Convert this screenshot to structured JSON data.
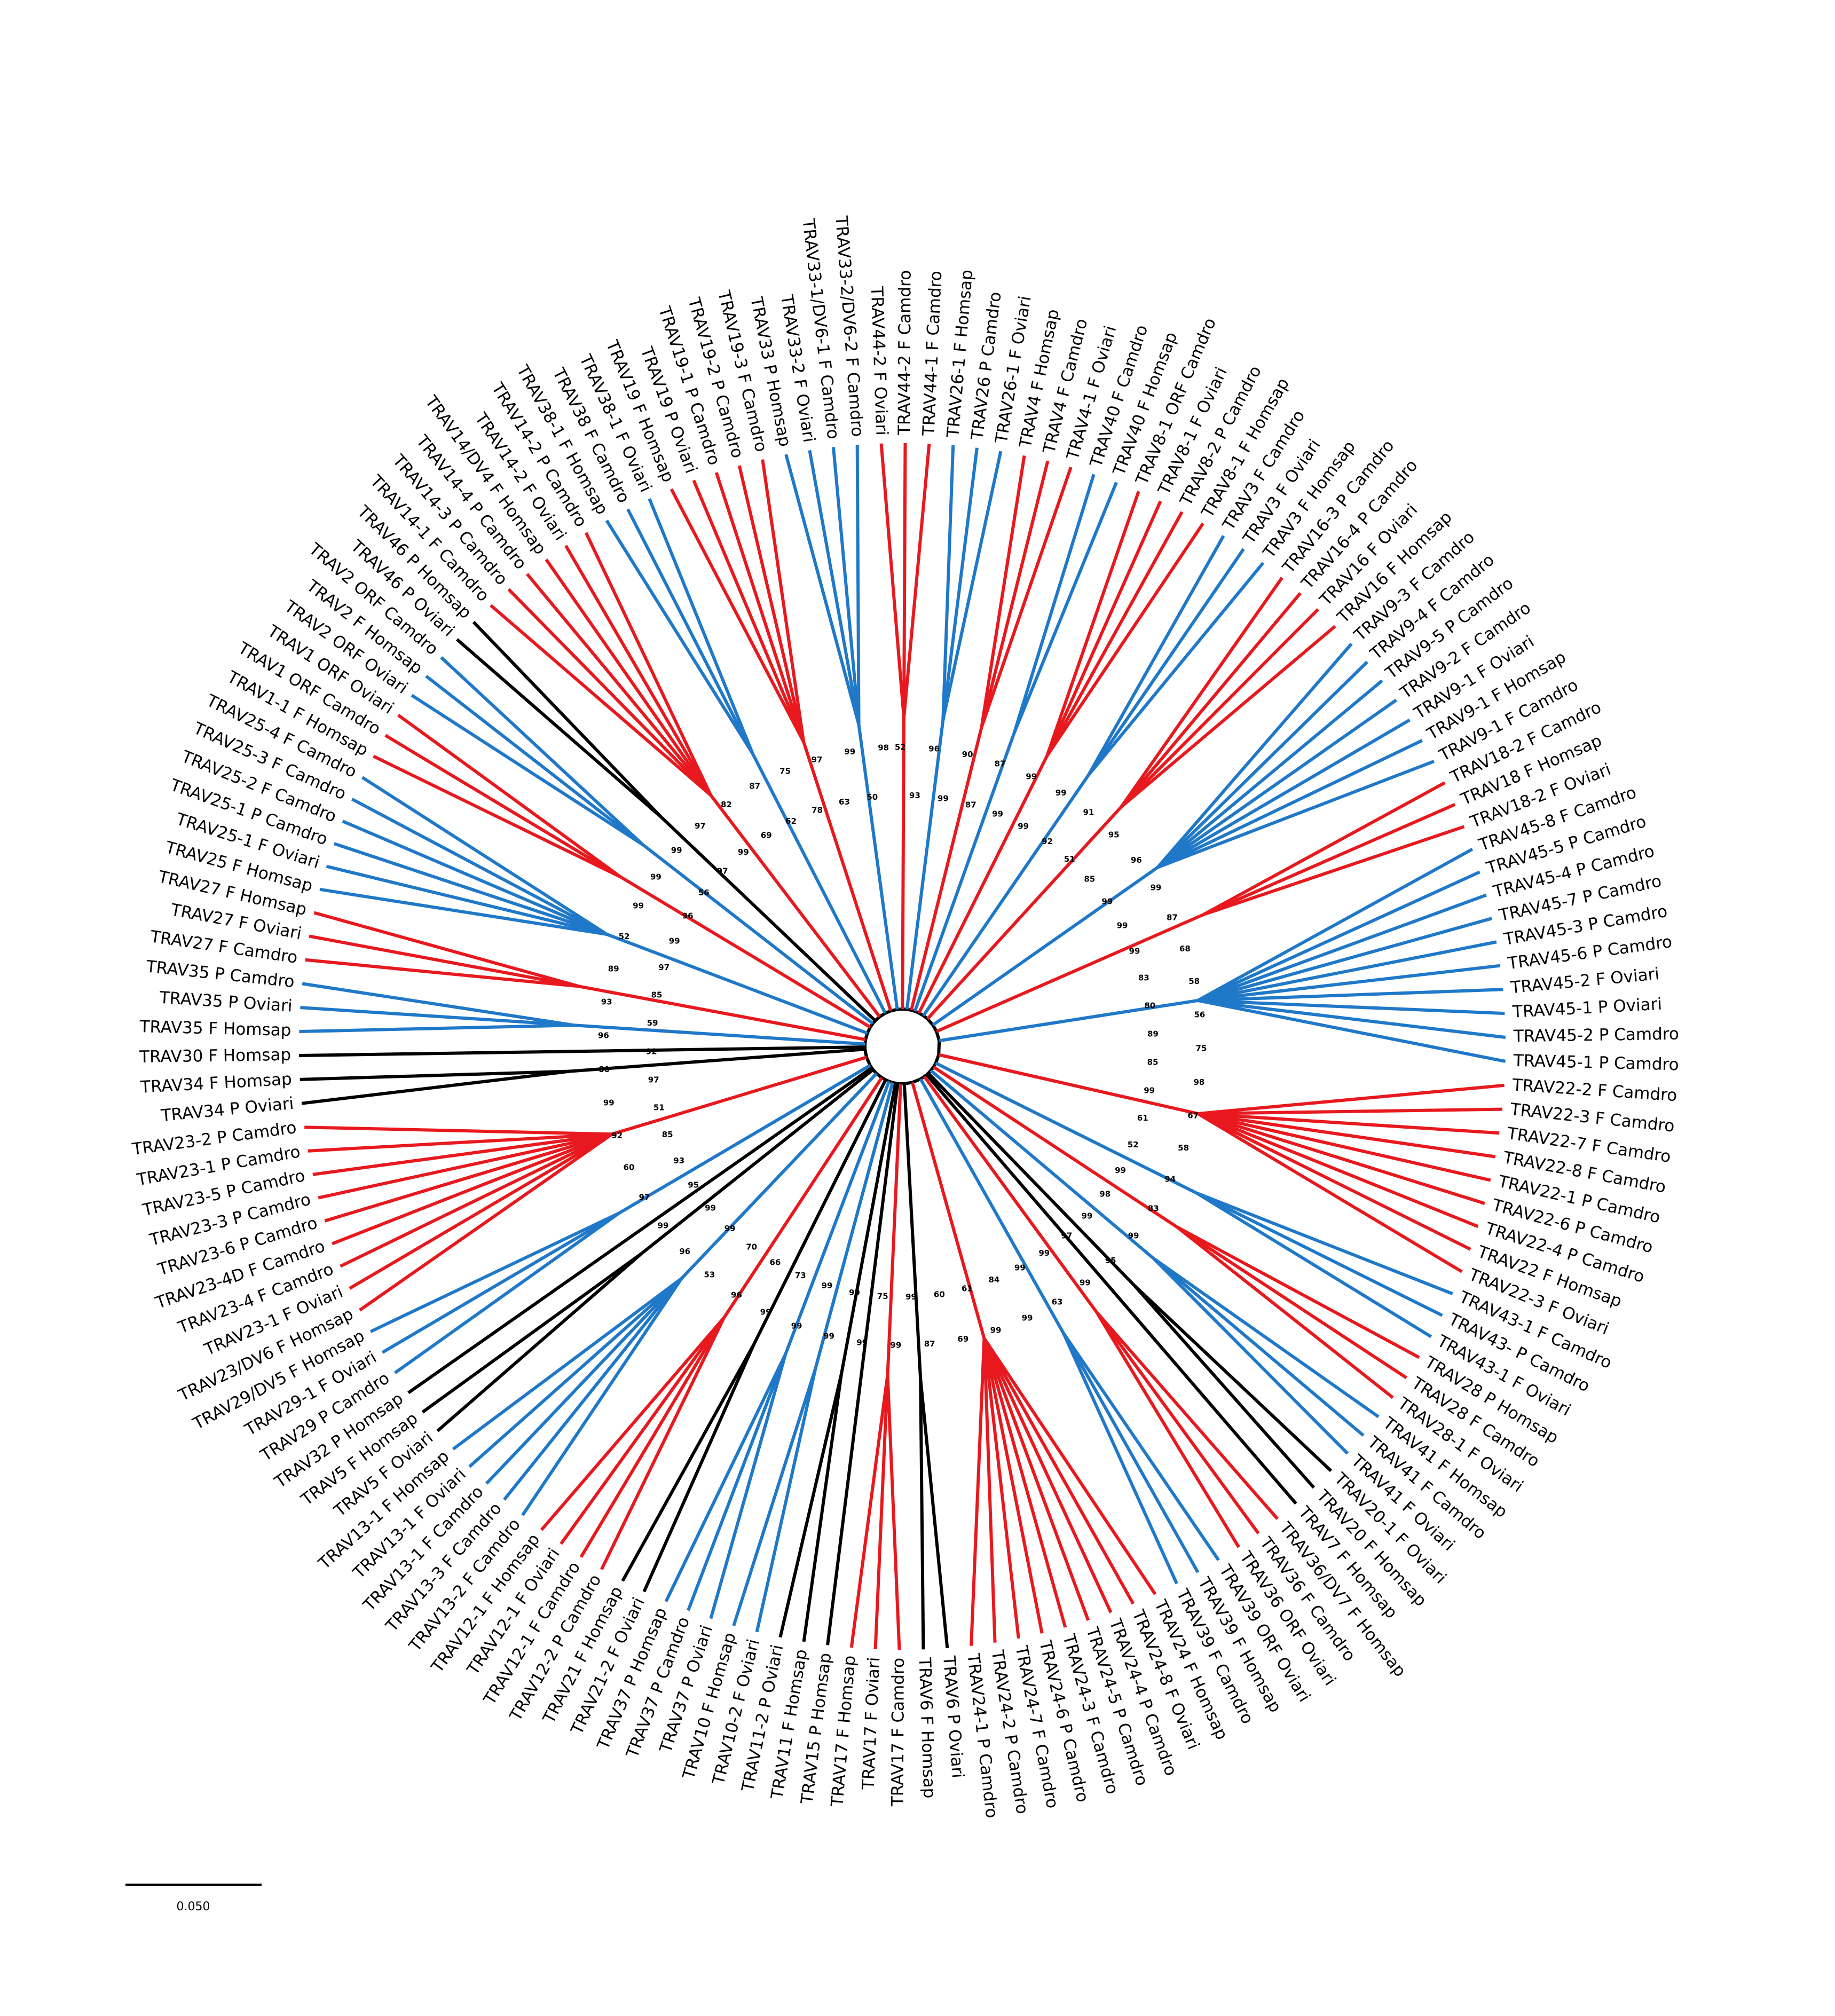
{
  "tree": {
    "leaves": [
      {
        "label": "TRAV44-2 F Oviari",
        "color": "#e8191e"
      },
      {
        "label": "TRAV44-2 F Camdro",
        "color": "#e8191e"
      },
      {
        "label": "TRAV44-1 F Camdro",
        "color": "#e8191e"
      },
      {
        "label": "TRAV26-1 F Homsap",
        "color": "#1f78c8"
      },
      {
        "label": "TRAV26 P Camdro",
        "color": "#1f78c8"
      },
      {
        "label": "TRAV26-1 F Oviari",
        "color": "#1f78c8"
      },
      {
        "label": "TRAV4 F Homsap",
        "color": "#e8191e"
      },
      {
        "label": "TRAV4 F Camdro",
        "color": "#e8191e"
      },
      {
        "label": "TRAV4-1 F Oviari",
        "color": "#e8191e"
      },
      {
        "label": "TRAV40 F Camdro",
        "color": "#1f78c8"
      },
      {
        "label": "TRAV40 F Homsap",
        "color": "#1f78c8"
      },
      {
        "label": "TRAV8-1 ORF Camdro",
        "color": "#e8191e"
      },
      {
        "label": "TRAV8-1 F Oviari",
        "color": "#e8191e"
      },
      {
        "label": "TRAV8-2 P Camdro",
        "color": "#e8191e"
      },
      {
        "label": "TRAV8-1 F Homsap",
        "color": "#e8191e"
      },
      {
        "label": "TRAV3 F Camdro",
        "color": "#1f78c8"
      },
      {
        "label": "TRAV3 F Oviari",
        "color": "#1f78c8"
      },
      {
        "label": "TRAV3 F Homsap",
        "color": "#1f78c8"
      },
      {
        "label": "TRAV16-3 P Camdro",
        "color": "#e8191e"
      },
      {
        "label": "TRAV16-4 P Camdro",
        "color": "#e8191e"
      },
      {
        "label": "TRAV16 F Oviari",
        "color": "#e8191e"
      },
      {
        "label": "TRAV16 F Homsap",
        "color": "#e8191e"
      },
      {
        "label": "TRAV9-3 F Camdro",
        "color": "#1f78c8"
      },
      {
        "label": "TRAV9-4 F Camdro",
        "color": "#1f78c8"
      },
      {
        "label": "TRAV9-5 P Camdro",
        "color": "#1f78c8"
      },
      {
        "label": "TRAV9-2 F Camdro",
        "color": "#1f78c8"
      },
      {
        "label": "TRAV9-1 F Oviari",
        "color": "#1f78c8"
      },
      {
        "label": "TRAV9-1 F Homsap",
        "color": "#1f78c8"
      },
      {
        "label": "TRAV9-1 F Camdro",
        "color": "#1f78c8"
      },
      {
        "label": "TRAV18-2 F Camdro",
        "color": "#e8191e"
      },
      {
        "label": "TRAV18 F Homsap",
        "color": "#e8191e"
      },
      {
        "label": "TRAV18-2 F Oviari",
        "color": "#e8191e"
      },
      {
        "label": "TRAV45-8 F Camdro",
        "color": "#1f78c8"
      },
      {
        "label": "TRAV45-5 P Camdro",
        "color": "#1f78c8"
      },
      {
        "label": "TRAV45-4 P Camdro",
        "color": "#1f78c8"
      },
      {
        "label": "TRAV45-7 P Camdro",
        "color": "#1f78c8"
      },
      {
        "label": "TRAV45-3 P Camdro",
        "color": "#1f78c8"
      },
      {
        "label": "TRAV45-6 P Camdro",
        "color": "#1f78c8"
      },
      {
        "label": "TRAV45-2 F Oviari",
        "color": "#1f78c8"
      },
      {
        "label": "TRAV45-1 P Oviari",
        "color": "#1f78c8"
      },
      {
        "label": "TRAV45-2 P Camdro",
        "color": "#1f78c8"
      },
      {
        "label": "TRAV45-1 P Camdro",
        "color": "#1f78c8"
      },
      {
        "label": "TRAV22-2 F Camdro",
        "color": "#e8191e"
      },
      {
        "label": "TRAV22-3 F Camdro",
        "color": "#e8191e"
      },
      {
        "label": "TRAV22-7 F Camdro",
        "color": "#e8191e"
      },
      {
        "label": "TRAV22-8 F Camdro",
        "color": "#e8191e"
      },
      {
        "label": "TRAV22-1 P Camdro",
        "color": "#e8191e"
      },
      {
        "label": "TRAV22-6 P Camdro",
        "color": "#e8191e"
      },
      {
        "label": "TRAV22-4 P Camdro",
        "color": "#e8191e"
      },
      {
        "label": "TRAV22 F Homsap",
        "color": "#e8191e"
      },
      {
        "label": "TRAV22-3 F Oviari",
        "color": "#e8191e"
      },
      {
        "label": "TRAV43-1 F Camdro",
        "color": "#1f78c8"
      },
      {
        "label": "TRAV43- P Camdro",
        "color": "#1f78c8"
      },
      {
        "label": "TRAV43-1 F Oviari",
        "color": "#1f78c8"
      },
      {
        "label": "TRAV28 P Homsap",
        "color": "#e8191e"
      },
      {
        "label": "TRAV28 F Camdro",
        "color": "#e8191e"
      },
      {
        "label": "TRAV28-1 F Oviari",
        "color": "#e8191e"
      },
      {
        "label": "TRAV41 F Homsap",
        "color": "#1f78c8"
      },
      {
        "label": "TRAV41 F Camdro",
        "color": "#1f78c8"
      },
      {
        "label": "TRAV41 F Oviari",
        "color": "#1f78c8"
      },
      {
        "label": "TRAV20-1 F Oviari",
        "color": "#000000"
      },
      {
        "label": "TRAV20 F Homsap",
        "color": "#000000"
      },
      {
        "label": "TRAV7 F Homsap",
        "color": "#000000"
      },
      {
        "label": "TRAV36/DV7 F Homsap",
        "color": "#e8191e"
      },
      {
        "label": "TRAV36 F Camdro",
        "color": "#e8191e"
      },
      {
        "label": "TRAV36 ORF Oviari",
        "color": "#e8191e"
      },
      {
        "label": "TRAV39 ORF Oviari",
        "color": "#1f78c8"
      },
      {
        "label": "TRAV39 F Homsap",
        "color": "#1f78c8"
      },
      {
        "label": "TRAV39 F Camdro",
        "color": "#1f78c8"
      },
      {
        "label": "TRAV24 F Homsap",
        "color": "#e8191e"
      },
      {
        "label": "TRAV24-8 F Oviari",
        "color": "#e8191e"
      },
      {
        "label": "TRAV24-4 P Camdro",
        "color": "#e8191e"
      },
      {
        "label": "TRAV24-5 P Camdro",
        "color": "#e8191e"
      },
      {
        "label": "TRAV24-3 F Camdro",
        "color": "#e8191e"
      },
      {
        "label": "TRAV24-6 P Camdro",
        "color": "#e8191e"
      },
      {
        "label": "TRAV24-7 F Camdro",
        "color": "#e8191e"
      },
      {
        "label": "TRAV24-2 P Camdro",
        "color": "#e8191e"
      },
      {
        "label": "TRAV24-1 P Camdro",
        "color": "#e8191e"
      },
      {
        "label": "TRAV6 P Oviari",
        "color": "#000000"
      },
      {
        "label": "TRAV6 F Homsap",
        "color": "#000000"
      },
      {
        "label": "TRAV17 F Camdro",
        "color": "#e8191e"
      },
      {
        "label": "TRAV17 F Oviari",
        "color": "#e8191e"
      },
      {
        "label": "TRAV17 F Homsap",
        "color": "#e8191e"
      },
      {
        "label": "TRAV15 P Homsap",
        "color": "#000000"
      },
      {
        "label": "TRAV11 F Homsap",
        "color": "#000000"
      },
      {
        "label": "TRAV11-2 P Oviari",
        "color": "#000000"
      },
      {
        "label": "TRAV10-2 F Oviari",
        "color": "#1f78c8"
      },
      {
        "label": "TRAV10 F Homsap",
        "color": "#1f78c8"
      },
      {
        "label": "TRAV37 P Oviari",
        "color": "#1f78c8"
      },
      {
        "label": "TRAV37 P Camdro",
        "color": "#1f78c8"
      },
      {
        "label": "TRAV37 P Homsap",
        "color": "#1f78c8"
      },
      {
        "label": "TRAV21-2 F Oviari",
        "color": "#000000"
      },
      {
        "label": "TRAV21 F Homsap",
        "color": "#000000"
      },
      {
        "label": "TRAV12-2 P Camdro",
        "color": "#e8191e"
      },
      {
        "label": "TRAV12-1 F Camdro",
        "color": "#e8191e"
      },
      {
        "label": "TRAV12-1 F Oviari",
        "color": "#e8191e"
      },
      {
        "label": "TRAV12-1 F Homsap",
        "color": "#e8191e"
      },
      {
        "label": "TRAV13-2 F Camdro",
        "color": "#1f78c8"
      },
      {
        "label": "TRAV13-3 F Camdro",
        "color": "#1f78c8"
      },
      {
        "label": "TRAV13-1 F Camdro",
        "color": "#1f78c8"
      },
      {
        "label": "TRAV13-1 F Oviari",
        "color": "#1f78c8"
      },
      {
        "label": "TRAV13-1 F Homsap",
        "color": "#1f78c8"
      },
      {
        "label": "TRAV5 F Oviari",
        "color": "#000000"
      },
      {
        "label": "TRAV5 F Homsap",
        "color": "#000000"
      },
      {
        "label": "TRAV32 P Homsap",
        "color": "#000000"
      },
      {
        "label": "TRAV29 P Camdro",
        "color": "#1f78c8"
      },
      {
        "label": "TRAV29-1 F Oviari",
        "color": "#1f78c8"
      },
      {
        "label": "TRAV29/DV5 F Homsap",
        "color": "#1f78c8"
      },
      {
        "label": "TRAV23/DV6 F Homsap",
        "color": "#e8191e"
      },
      {
        "label": "TRAV23-1 F Oviari",
        "color": "#e8191e"
      },
      {
        "label": "TRAV23-4 F Camdro",
        "color": "#e8191e"
      },
      {
        "label": "TRAV23-4D F Camdro",
        "color": "#e8191e"
      },
      {
        "label": "TRAV23-6 P Camdro",
        "color": "#e8191e"
      },
      {
        "label": "TRAV23-3 P Camdro",
        "color": "#e8191e"
      },
      {
        "label": "TRAV23-5 P Camdro",
        "color": "#e8191e"
      },
      {
        "label": "TRAV23-1 P Camdro",
        "color": "#e8191e"
      },
      {
        "label": "TRAV23-2 P Camdro",
        "color": "#e8191e"
      },
      {
        "label": "TRAV34 P Oviari",
        "color": "#000000"
      },
      {
        "label": "TRAV34 F Homsap",
        "color": "#000000"
      },
      {
        "label": "TRAV30 F Homsap",
        "color": "#000000"
      },
      {
        "label": "TRAV35 F Homsap",
        "color": "#1f78c8"
      },
      {
        "label": "TRAV35 P Oviari",
        "color": "#1f78c8"
      },
      {
        "label": "TRAV35 P Camdro",
        "color": "#1f78c8"
      },
      {
        "label": "TRAV27 F Camdro",
        "color": "#e8191e"
      },
      {
        "label": "TRAV27 F Oviari",
        "color": "#e8191e"
      },
      {
        "label": "TRAV27 F Homsap",
        "color": "#e8191e"
      },
      {
        "label": "TRAV25 F Homsap",
        "color": "#1f78c8"
      },
      {
        "label": "TRAV25-1 F Oviari",
        "color": "#1f78c8"
      },
      {
        "label": "TRAV25-1 P Camdro",
        "color": "#1f78c8"
      },
      {
        "label": "TRAV25-2 F Camdro",
        "color": "#1f78c8"
      },
      {
        "label": "TRAV25-3 F Camdro",
        "color": "#1f78c8"
      },
      {
        "label": "TRAV25-4 F Camdro",
        "color": "#1f78c8"
      },
      {
        "label": "TRAV1-1 F Homsap",
        "color": "#e8191e"
      },
      {
        "label": "TRAV1 ORF Camdro",
        "color": "#e8191e"
      },
      {
        "label": "TRAV1 ORF Oviari",
        "color": "#e8191e"
      },
      {
        "label": "TRAV2 ORF Oviari",
        "color": "#1f78c8"
      },
      {
        "label": "TRAV2 F Homsap",
        "color": "#1f78c8"
      },
      {
        "label": "TRAV2 ORF Camdro",
        "color": "#1f78c8"
      },
      {
        "label": "TRAV46 P Oviari",
        "color": "#000000"
      },
      {
        "label": "TRAV46 P Homsap",
        "color": "#000000"
      },
      {
        "label": "TRAV14-1 F Camdro",
        "color": "#e8191e"
      },
      {
        "label": "TRAV14-3 P Camdro",
        "color": "#e8191e"
      },
      {
        "label": "TRAV14-4 P Camdro",
        "color": "#e8191e"
      },
      {
        "label": "TRAV14/DV4 F Homsap",
        "color": "#e8191e"
      },
      {
        "label": "TRAV14-2 F Oviari",
        "color": "#e8191e"
      },
      {
        "label": "TRAV14-2 P Camdro",
        "color": "#e8191e"
      },
      {
        "label": "TRAV38-1 F Homsap",
        "color": "#1f78c8"
      },
      {
        "label": "TRAV38 F Camdro",
        "color": "#1f78c8"
      },
      {
        "label": "TRAV38-1 F Oviari",
        "color": "#1f78c8"
      },
      {
        "label": "TRAV19 F Homsap",
        "color": "#e8191e"
      },
      {
        "label": "TRAV19 P Oviari",
        "color": "#e8191e"
      },
      {
        "label": "TRAV19-1 P Camdro",
        "color": "#e8191e"
      },
      {
        "label": "TRAV19-2 P Camdro",
        "color": "#e8191e"
      },
      {
        "label": "TRAV19-3 F Camdro",
        "color": "#e8191e"
      },
      {
        "label": "TRAV33 P Homsap",
        "color": "#1f78c8"
      },
      {
        "label": "TRAV33-2 F Oviari",
        "color": "#1f78c8"
      },
      {
        "label": "TRAV33-1/DV6-1 F Camdro",
        "color": "#1f78c8"
      },
      {
        "label": "TRAV33-2/DV6-2 F Camdro",
        "color": "#1f78c8"
      }
    ],
    "support_values": [
      52,
      93,
      96,
      99,
      90,
      87,
      87,
      99,
      99,
      99,
      99,
      92,
      91,
      51,
      95,
      85,
      96,
      99,
      99,
      99,
      87,
      99,
      68,
      83,
      58,
      80,
      56,
      89,
      75,
      85,
      98,
      99,
      67,
      61,
      58,
      52,
      94,
      99,
      83,
      98,
      99,
      99,
      95,
      97,
      99,
      99,
      63,
      99,
      99,
      84,
      99,
      61,
      69,
      60,
      87,
      99,
      99,
      75,
      99,
      99,
      99,
      99,
      99,
      73,
      99,
      66,
      96,
      70,
      53,
      99,
      96,
      99,
      99,
      95,
      97,
      93,
      60,
      85,
      92,
      51,
      99,
      97,
      80,
      92,
      96,
      59,
      93,
      85,
      89,
      97,
      52,
      99,
      99,
      96,
      99,
      56,
      99,
      97,
      97,
      99,
      82,
      69,
      87,
      62,
      75,
      78,
      97,
      63,
      99,
      50,
      98
    ],
    "scale_bar": "0.050"
  }
}
